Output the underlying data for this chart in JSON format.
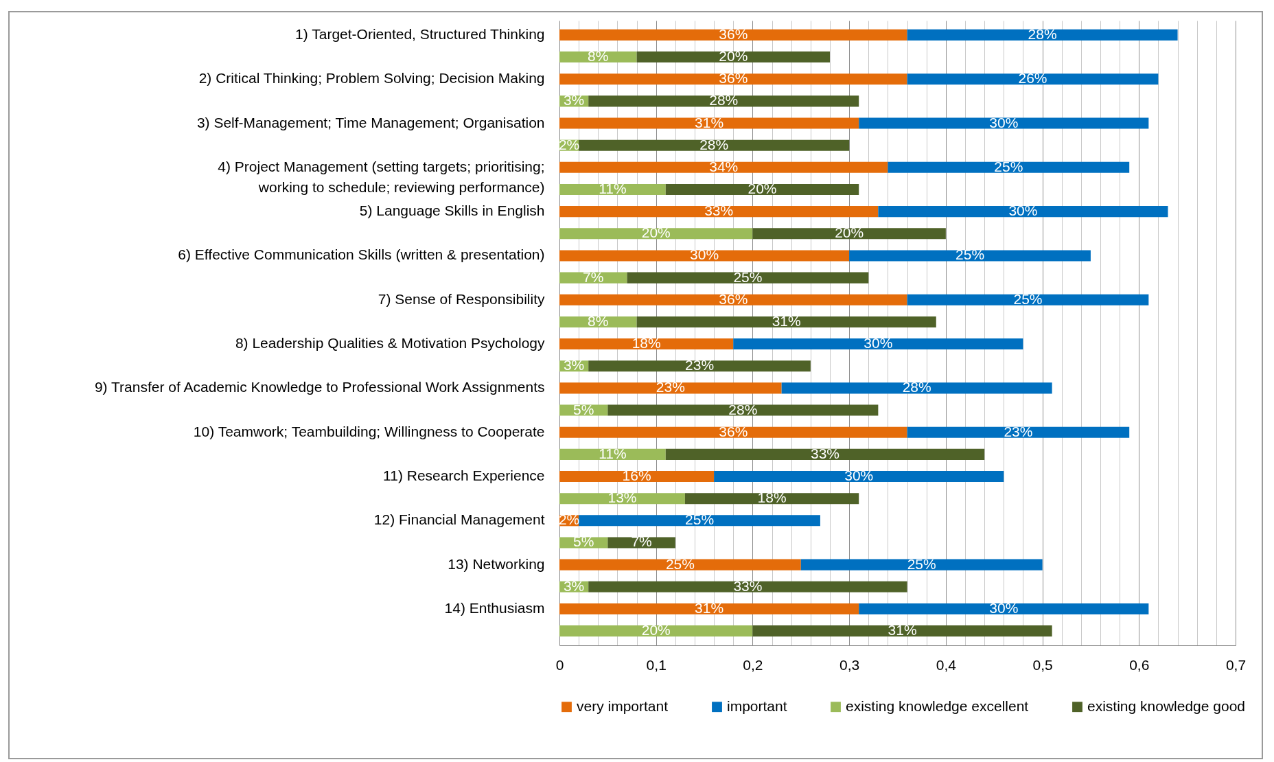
{
  "chart_data": {
    "type": "bar",
    "orientation": "horizontal",
    "stacked": true,
    "categories": [
      "1) Target-Oriented, Structured Thinking",
      null,
      "2) Critical Thinking; Problem Solving; Decision Making",
      null,
      "3) Self-Management; Time Management; Organisation",
      null,
      "4) Project Management (setting targets; prioritising; working to schedule; reviewing performance)",
      null,
      "5) Language Skills in English",
      null,
      "6) Effective Communication Skills (written & presentation)",
      null,
      "7) Sense of Responsibility",
      null,
      "8) Leadership Qualities & Motivation Psychology",
      null,
      "9) Transfer of Academic Knowledge to Professional Work Assignments",
      null,
      "10) Teamwork; Teambuilding; Willingness to Cooperate",
      null,
      "11) Research Experience",
      null,
      "12) Financial Management",
      null,
      "13) Networking",
      null,
      "14) Enthusiasm",
      null
    ],
    "series": [
      {
        "name": "very important",
        "color": "#e46c0a",
        "values": [
          0.36,
          null,
          0.36,
          null,
          0.31,
          null,
          0.34,
          null,
          0.33,
          null,
          0.3,
          null,
          0.36,
          null,
          0.18,
          null,
          0.23,
          null,
          0.36,
          null,
          0.16,
          null,
          0.02,
          null,
          0.25,
          null,
          0.31,
          null
        ],
        "value_labels": [
          "36%",
          null,
          "36%",
          null,
          "31%",
          null,
          "34%",
          null,
          "33%",
          null,
          "30%",
          null,
          "36%",
          null,
          "18%",
          null,
          "23%",
          null,
          "36%",
          null,
          "16%",
          null,
          "2%",
          null,
          "25%",
          null,
          "31%",
          null
        ]
      },
      {
        "name": "important",
        "color": "#0070c0",
        "values": [
          0.28,
          null,
          0.26,
          null,
          0.3,
          null,
          0.25,
          null,
          0.3,
          null,
          0.25,
          null,
          0.25,
          null,
          0.3,
          null,
          0.28,
          null,
          0.23,
          null,
          0.3,
          null,
          0.25,
          null,
          0.25,
          null,
          0.3,
          null
        ],
        "value_labels": [
          "28%",
          null,
          "26%",
          null,
          "30%",
          null,
          "25%",
          null,
          "30%",
          null,
          "25%",
          null,
          "25%",
          null,
          "30%",
          null,
          "28%",
          null,
          "23%",
          null,
          "30%",
          null,
          "25%",
          null,
          "25%",
          null,
          "30%",
          null
        ]
      },
      {
        "name": "existing knowledge excellent",
        "color": "#9bbb59",
        "values": [
          null,
          0.08,
          null,
          0.03,
          null,
          0.02,
          null,
          0.11,
          null,
          0.2,
          null,
          0.07,
          null,
          0.08,
          null,
          0.03,
          null,
          0.05,
          null,
          0.11,
          null,
          0.13,
          null,
          0.05,
          null,
          0.03,
          null,
          0.2
        ],
        "value_labels": [
          null,
          "8%",
          null,
          "3%",
          null,
          "2%",
          null,
          "11%",
          null,
          "20%",
          null,
          "7%",
          null,
          "8%",
          null,
          "3%",
          null,
          "5%",
          null,
          "11%",
          null,
          "13%",
          null,
          "5%",
          null,
          "3%",
          null,
          "20%"
        ]
      },
      {
        "name": "existing knowledge good",
        "color": "#4f6228",
        "values": [
          null,
          0.2,
          null,
          0.28,
          null,
          0.28,
          null,
          0.2,
          null,
          0.2,
          null,
          0.25,
          null,
          0.31,
          null,
          0.23,
          null,
          0.28,
          null,
          0.33,
          null,
          0.18,
          null,
          0.07,
          null,
          0.33,
          null,
          0.31
        ],
        "value_labels": [
          null,
          "20%",
          null,
          "28%",
          null,
          "28%",
          null,
          "20%",
          null,
          "20%",
          null,
          "25%",
          null,
          "31%",
          null,
          "23%",
          null,
          "28%",
          null,
          "33%",
          null,
          "18%",
          null,
          "7%",
          null,
          "33%",
          null,
          "31%"
        ]
      }
    ],
    "xlim": [
      0,
      0.7
    ],
    "xticks": [
      0,
      {
        "value": 0.02,
        "label": null
      },
      {
        "value": 0.04,
        "label": null
      },
      {
        "value": 0.06,
        "label": null
      },
      {
        "value": 0.08,
        "label": null
      },
      {
        "value": 0.1,
        "label": "0,1"
      },
      {
        "value": 0.12,
        "label": null
      },
      {
        "value": 0.14,
        "label": null
      },
      {
        "value": 0.16,
        "label": null
      },
      {
        "value": 0.18,
        "label": null
      },
      {
        "value": 0.2,
        "label": "0,2"
      },
      {
        "value": 0.22,
        "label": null
      },
      {
        "value": 0.24,
        "label": null
      },
      {
        "value": 0.26,
        "label": null
      },
      {
        "value": 0.28,
        "label": null
      },
      {
        "value": 0.3,
        "label": "0,3"
      },
      {
        "value": 0.32,
        "label": null
      },
      {
        "value": 0.34,
        "label": null
      },
      {
        "value": 0.36,
        "label": null
      },
      {
        "value": 0.38,
        "label": null
      },
      {
        "value": 0.4,
        "label": "0,4"
      },
      {
        "value": 0.42,
        "label": null
      },
      {
        "value": 0.44,
        "label": null
      },
      {
        "value": 0.46,
        "label": null
      },
      {
        "value": 0.48,
        "label": null
      },
      {
        "value": 0.5,
        "label": "0,5"
      },
      {
        "value": 0.52,
        "label": null
      },
      {
        "value": 0.54,
        "label": null
      },
      {
        "value": 0.56,
        "label": null
      },
      {
        "value": 0.58,
        "label": null
      },
      {
        "value": 0.6,
        "label": "0,6"
      },
      {
        "value": 0.62,
        "label": null
      },
      {
        "value": 0.64,
        "label": null
      },
      {
        "value": 0.66,
        "label": null
      },
      {
        "value": 0.68,
        "label": null
      },
      {
        "value": 0.7,
        "label": "0,7"
      }
    ],
    "grid": "x",
    "legend": "bottom"
  }
}
